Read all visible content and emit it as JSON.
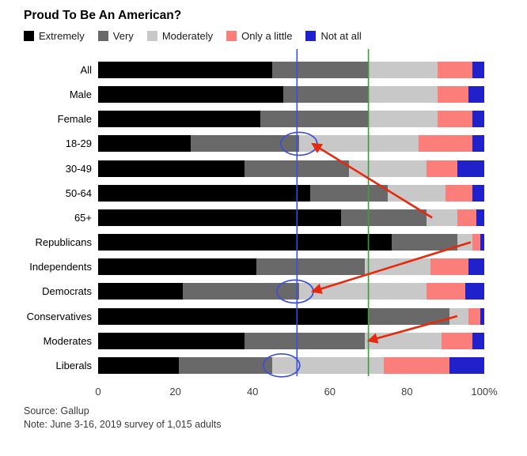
{
  "title": "Proud To Be An American?",
  "legend": [
    {
      "label": "Extremely",
      "color": "#000000"
    },
    {
      "label": "Very",
      "color": "#696969"
    },
    {
      "label": "Moderately",
      "color": "#c8c8c8"
    },
    {
      "label": "Only a little",
      "color": "#fc7e7a"
    },
    {
      "label": "Not at all",
      "color": "#2121cc"
    }
  ],
  "chart_data": {
    "type": "bar",
    "stacked": true,
    "orientation": "horizontal",
    "title": "Proud To Be An American?",
    "xlabel": "",
    "ylabel": "",
    "xlim": [
      0,
      100
    ],
    "x_ticks": [
      "0",
      "20",
      "40",
      "60",
      "80",
      "100%"
    ],
    "x_tick_values": [
      0,
      20,
      40,
      60,
      80,
      100
    ],
    "categories": [
      "All",
      "Male",
      "Female",
      "18-29",
      "30-49",
      "50-64",
      "65+",
      "Republicans",
      "Independents",
      "Democrats",
      "Conservatives",
      "Moderates",
      "Liberals"
    ],
    "series": [
      {
        "name": "Extremely",
        "color": "#000000",
        "values": [
          45,
          48,
          42,
          24,
          38,
          55,
          63,
          76,
          41,
          22,
          70,
          38,
          21
        ]
      },
      {
        "name": "Very",
        "color": "#696969",
        "values": [
          25,
          22,
          28,
          28,
          27,
          20,
          22,
          17,
          28,
          30,
          21,
          31,
          24
        ]
      },
      {
        "name": "Moderately",
        "color": "#c8c8c8",
        "values": [
          18,
          18,
          18,
          31,
          20,
          15,
          8,
          4,
          17,
          33,
          5,
          20,
          29
        ]
      },
      {
        "name": "Only a little",
        "color": "#fc7e7a",
        "values": [
          9,
          8,
          9,
          14,
          8,
          7,
          5,
          2,
          10,
          10,
          3,
          8,
          17
        ]
      },
      {
        "name": "Not at all",
        "color": "#2121cc",
        "values": [
          3,
          4,
          3,
          3,
          7,
          3,
          2,
          1,
          4,
          5,
          1,
          3,
          9
        ]
      }
    ]
  },
  "annotations": {
    "colors": {
      "blue": "#3b4fd8",
      "green": "#3e9d3e",
      "red": "#e8280c"
    },
    "blue_line_pct": 51.5,
    "green_line_pct": 70,
    "circles": [
      {
        "row": "18-29",
        "row_index": 3,
        "pct": 52
      },
      {
        "row": "Democrats",
        "row_index": 9,
        "pct": 51
      },
      {
        "row": "Liberals",
        "row_index": 12,
        "pct": 47.5
      }
    ],
    "arrows": [
      {
        "from": {
          "row_index": 6,
          "pct": 86.5
        },
        "to": {
          "row_index": 3,
          "pct": 55.5
        }
      },
      {
        "from": {
          "row_index": 7,
          "pct": 96.5
        },
        "to": {
          "row_index": 9,
          "pct": 55.5
        }
      },
      {
        "from": {
          "row_index": 10,
          "pct": 93
        },
        "to": {
          "row_index": 11,
          "pct": 70
        }
      }
    ]
  },
  "source_line": "Source: Gallup",
  "note_line": "Note: June 3-16, 2019 survey of 1,015 adults"
}
